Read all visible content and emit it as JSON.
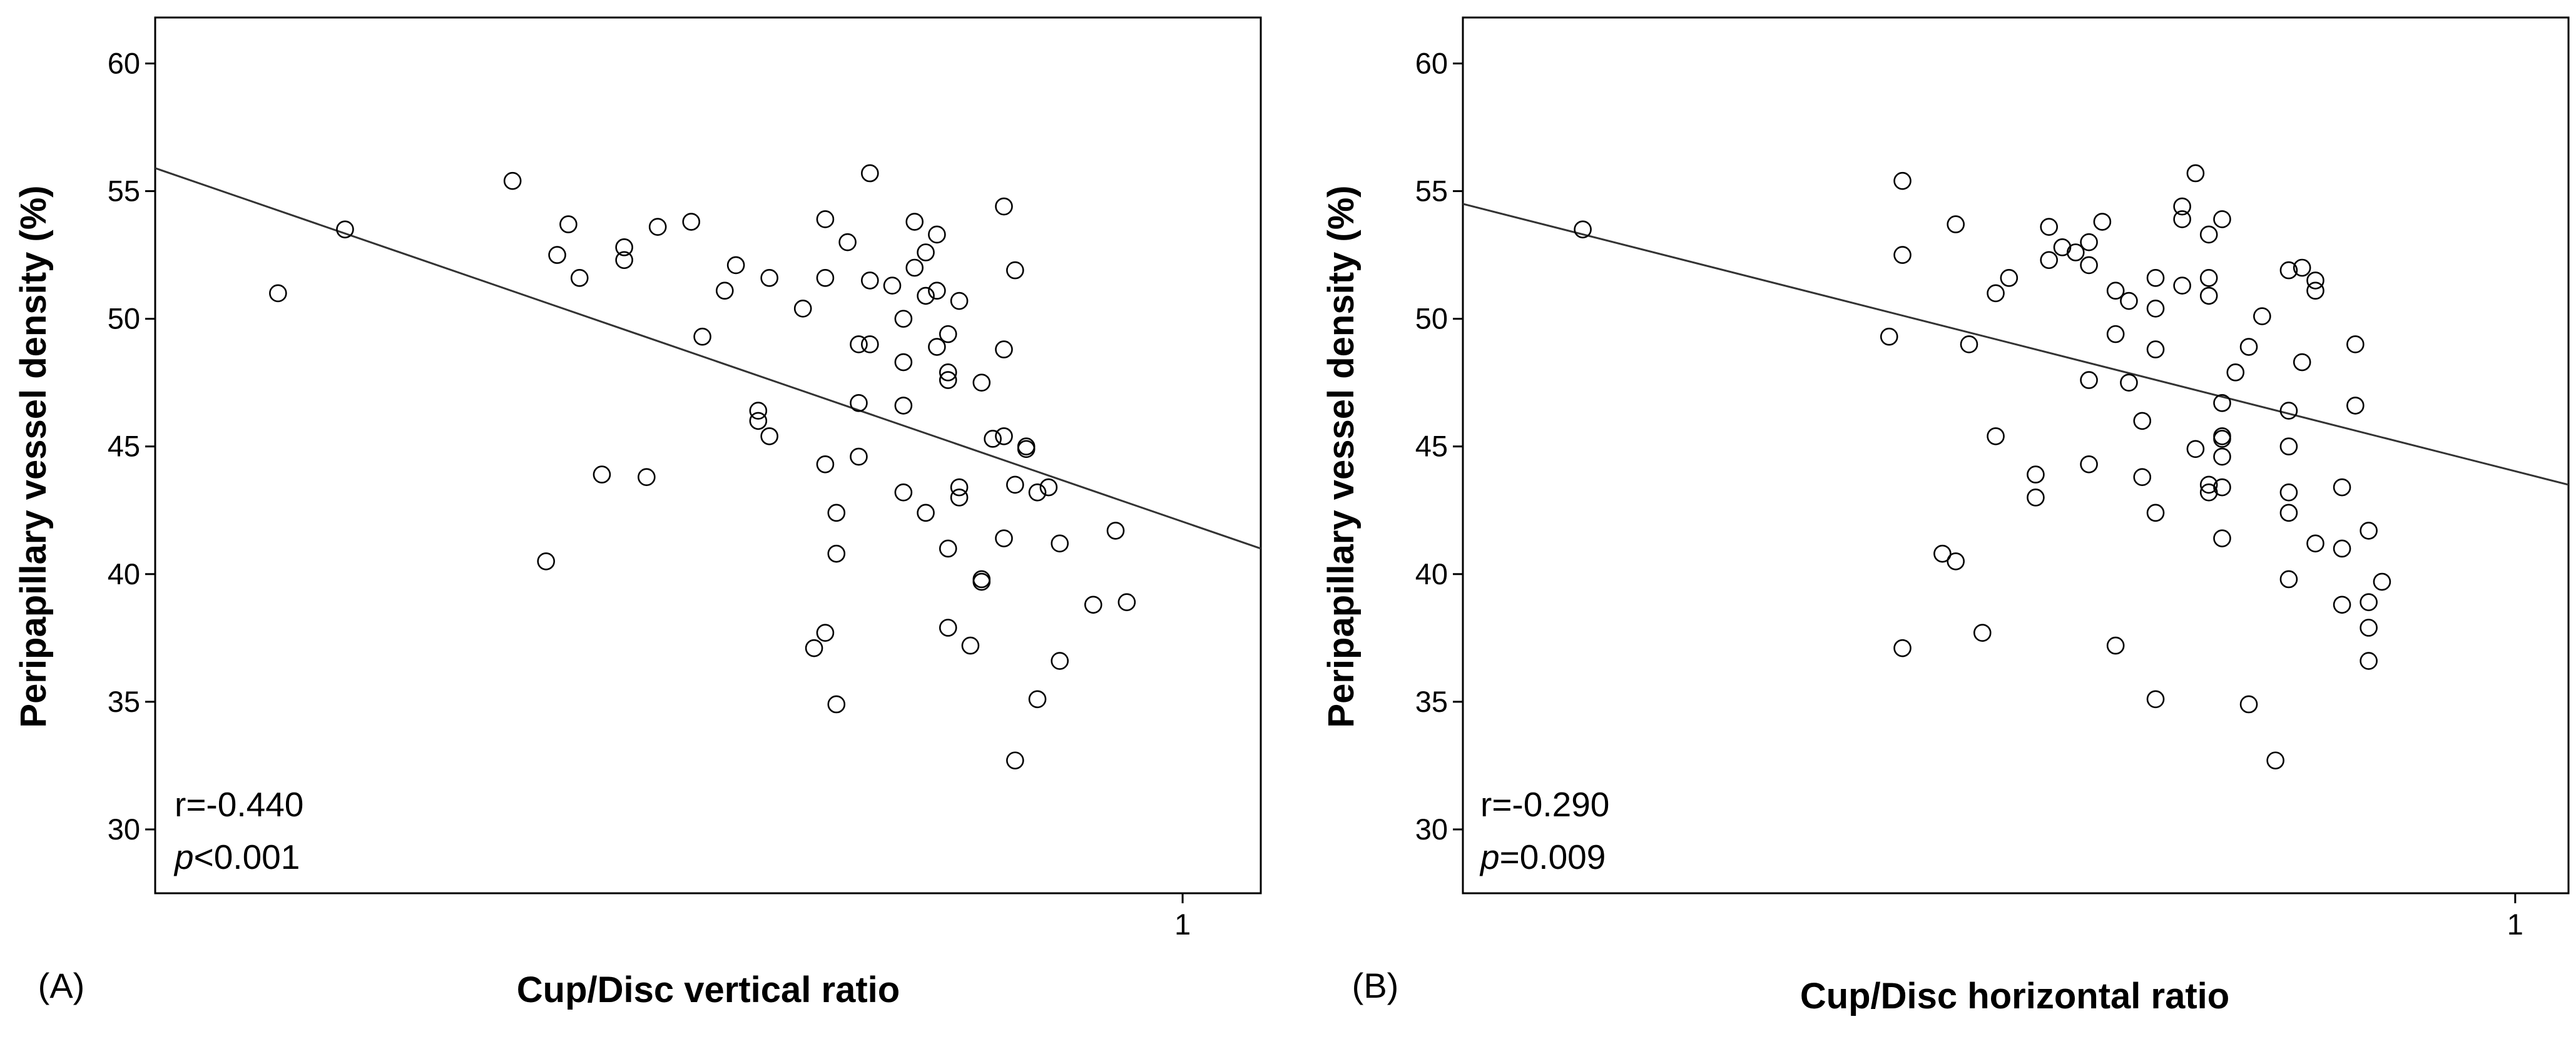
{
  "chart_data": [
    {
      "type": "scatter",
      "panel_label": "(A)",
      "title": "",
      "xlabel": "Cup/Disc vertical ratio",
      "ylabel": "Peripapillary vessel density (%)",
      "xlim": [
        0.08,
        1.07
      ],
      "ylim": [
        27.5,
        61.8
      ],
      "x_ticks": [
        1
      ],
      "x_tick_labels": [
        "1"
      ],
      "y_ticks": [
        30,
        35,
        40,
        45,
        50,
        55,
        60
      ],
      "y_tick_labels": [
        "30",
        "35",
        "40",
        "45",
        "50",
        "55",
        "60"
      ],
      "grid": false,
      "fit_line": {
        "x": [
          0.08,
          1.07
        ],
        "y": [
          55.9,
          41.0
        ]
      },
      "stats": {
        "r_text": "r=-0.440",
        "p_symbol": "p",
        "p_value": "<0.001"
      },
      "points": [
        [
          0.19,
          51.0
        ],
        [
          0.25,
          53.5
        ],
        [
          0.4,
          55.4
        ],
        [
          0.43,
          40.5
        ],
        [
          0.44,
          52.5
        ],
        [
          0.45,
          53.7
        ],
        [
          0.46,
          51.6
        ],
        [
          0.48,
          43.9
        ],
        [
          0.5,
          52.8
        ],
        [
          0.5,
          52.3
        ],
        [
          0.52,
          43.8
        ],
        [
          0.53,
          53.6
        ],
        [
          0.56,
          53.8
        ],
        [
          0.57,
          49.3
        ],
        [
          0.59,
          51.1
        ],
        [
          0.6,
          52.1
        ],
        [
          0.62,
          46.4
        ],
        [
          0.62,
          46.0
        ],
        [
          0.63,
          45.4
        ],
        [
          0.63,
          51.6
        ],
        [
          0.66,
          50.4
        ],
        [
          0.67,
          37.1
        ],
        [
          0.68,
          53.9
        ],
        [
          0.68,
          44.3
        ],
        [
          0.68,
          37.7
        ],
        [
          0.68,
          51.6
        ],
        [
          0.69,
          42.4
        ],
        [
          0.69,
          40.8
        ],
        [
          0.69,
          34.9
        ],
        [
          0.7,
          53.0
        ],
        [
          0.71,
          49.0
        ],
        [
          0.71,
          44.6
        ],
        [
          0.71,
          46.7
        ],
        [
          0.72,
          49.0
        ],
        [
          0.72,
          55.7
        ],
        [
          0.72,
          51.5
        ],
        [
          0.74,
          51.3
        ],
        [
          0.75,
          50.0
        ],
        [
          0.75,
          48.3
        ],
        [
          0.75,
          46.6
        ],
        [
          0.75,
          43.2
        ],
        [
          0.76,
          53.8
        ],
        [
          0.76,
          52.0
        ],
        [
          0.77,
          52.6
        ],
        [
          0.77,
          50.9
        ],
        [
          0.77,
          42.4
        ],
        [
          0.78,
          53.3
        ],
        [
          0.78,
          51.1
        ],
        [
          0.78,
          48.9
        ],
        [
          0.79,
          47.9
        ],
        [
          0.79,
          47.6
        ],
        [
          0.79,
          49.4
        ],
        [
          0.79,
          41.0
        ],
        [
          0.79,
          37.9
        ],
        [
          0.8,
          50.7
        ],
        [
          0.8,
          43.4
        ],
        [
          0.8,
          43.0
        ],
        [
          0.81,
          37.2
        ],
        [
          0.82,
          47.5
        ],
        [
          0.82,
          39.8
        ],
        [
          0.82,
          39.7
        ],
        [
          0.83,
          45.3
        ],
        [
          0.84,
          45.4
        ],
        [
          0.84,
          48.8
        ],
        [
          0.84,
          54.4
        ],
        [
          0.84,
          41.4
        ],
        [
          0.85,
          51.9
        ],
        [
          0.85,
          43.5
        ],
        [
          0.85,
          32.7
        ],
        [
          0.86,
          45.0
        ],
        [
          0.86,
          44.9
        ],
        [
          0.87,
          35.1
        ],
        [
          0.87,
          43.2
        ],
        [
          0.88,
          43.4
        ],
        [
          0.89,
          41.2
        ],
        [
          0.89,
          36.6
        ],
        [
          0.92,
          38.8
        ],
        [
          0.94,
          41.7
        ],
        [
          0.95,
          38.9
        ]
      ]
    },
    {
      "type": "scatter",
      "panel_label": "(B)",
      "title": "",
      "xlabel": "Cup/Disc horizontal ratio",
      "ylabel": "Peripapillary vessel density (%)",
      "xlim": [
        0.21,
        1.04
      ],
      "ylim": [
        27.5,
        61.8
      ],
      "x_ticks": [
        1
      ],
      "x_tick_labels": [
        "1"
      ],
      "y_ticks": [
        30,
        35,
        40,
        45,
        50,
        55,
        60
      ],
      "y_tick_labels": [
        "30",
        "35",
        "40",
        "45",
        "50",
        "55",
        "60"
      ],
      "grid": false,
      "fit_line": {
        "x": [
          0.21,
          1.04
        ],
        "y": [
          54.5,
          43.5
        ]
      },
      "stats": {
        "r_text": "r=-0.290",
        "p_symbol": "p",
        "p_value": "=0.009"
      },
      "points": [
        [
          0.3,
          53.5
        ],
        [
          0.53,
          49.3
        ],
        [
          0.54,
          55.4
        ],
        [
          0.54,
          52.5
        ],
        [
          0.54,
          37.1
        ],
        [
          0.57,
          40.8
        ],
        [
          0.58,
          53.7
        ],
        [
          0.58,
          40.5
        ],
        [
          0.59,
          49.0
        ],
        [
          0.6,
          37.7
        ],
        [
          0.61,
          51.0
        ],
        [
          0.61,
          45.4
        ],
        [
          0.62,
          51.6
        ],
        [
          0.64,
          43.9
        ],
        [
          0.64,
          43.0
        ],
        [
          0.65,
          53.6
        ],
        [
          0.65,
          52.3
        ],
        [
          0.66,
          52.8
        ],
        [
          0.67,
          52.6
        ],
        [
          0.68,
          53.0
        ],
        [
          0.68,
          52.1
        ],
        [
          0.68,
          47.6
        ],
        [
          0.68,
          44.3
        ],
        [
          0.69,
          53.8
        ],
        [
          0.7,
          51.1
        ],
        [
          0.7,
          49.4
        ],
        [
          0.7,
          37.2
        ],
        [
          0.71,
          50.7
        ],
        [
          0.71,
          47.5
        ],
        [
          0.72,
          46.0
        ],
        [
          0.72,
          43.8
        ],
        [
          0.73,
          51.6
        ],
        [
          0.73,
          50.4
        ],
        [
          0.73,
          48.8
        ],
        [
          0.73,
          42.4
        ],
        [
          0.73,
          35.1
        ],
        [
          0.75,
          54.4
        ],
        [
          0.75,
          53.9
        ],
        [
          0.75,
          51.3
        ],
        [
          0.76,
          55.7
        ],
        [
          0.76,
          44.9
        ],
        [
          0.77,
          53.3
        ],
        [
          0.77,
          51.6
        ],
        [
          0.77,
          50.9
        ],
        [
          0.77,
          43.5
        ],
        [
          0.77,
          43.2
        ],
        [
          0.78,
          53.9
        ],
        [
          0.78,
          46.7
        ],
        [
          0.78,
          45.4
        ],
        [
          0.78,
          45.3
        ],
        [
          0.78,
          44.6
        ],
        [
          0.78,
          43.4
        ],
        [
          0.78,
          41.4
        ],
        [
          0.79,
          47.9
        ],
        [
          0.8,
          48.9
        ],
        [
          0.8,
          34.9
        ],
        [
          0.81,
          50.1
        ],
        [
          0.82,
          32.7
        ],
        [
          0.83,
          51.9
        ],
        [
          0.83,
          46.4
        ],
        [
          0.83,
          45.0
        ],
        [
          0.83,
          43.2
        ],
        [
          0.83,
          42.4
        ],
        [
          0.83,
          39.8
        ],
        [
          0.84,
          52.0
        ],
        [
          0.84,
          48.3
        ],
        [
          0.85,
          51.5
        ],
        [
          0.85,
          51.1
        ],
        [
          0.85,
          41.2
        ],
        [
          0.87,
          43.4
        ],
        [
          0.87,
          41.0
        ],
        [
          0.87,
          38.8
        ],
        [
          0.88,
          49.0
        ],
        [
          0.88,
          46.6
        ],
        [
          0.89,
          41.7
        ],
        [
          0.89,
          38.9
        ],
        [
          0.89,
          37.9
        ],
        [
          0.89,
          36.6
        ],
        [
          0.9,
          39.7
        ]
      ]
    }
  ]
}
